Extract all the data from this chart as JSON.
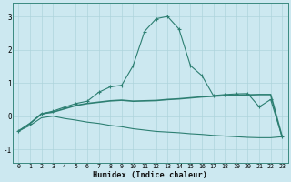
{
  "xlabel": "Humidex (Indice chaleur)",
  "x": [
    0,
    1,
    2,
    3,
    4,
    5,
    6,
    7,
    8,
    9,
    10,
    11,
    12,
    13,
    14,
    15,
    16,
    17,
    18,
    19,
    20,
    21,
    22,
    23
  ],
  "line1_y": [
    -0.45,
    -0.22,
    0.07,
    0.15,
    0.27,
    0.38,
    0.45,
    0.72,
    0.88,
    0.93,
    1.52,
    2.55,
    2.93,
    3.0,
    2.62,
    1.52,
    1.22,
    0.62,
    0.65,
    0.67,
    0.68,
    0.28,
    0.5,
    -0.62
  ],
  "line2_y": [
    -0.45,
    -0.22,
    0.07,
    0.12,
    0.22,
    0.32,
    0.38,
    0.42,
    0.46,
    0.48,
    0.45,
    0.46,
    0.47,
    0.5,
    0.52,
    0.55,
    0.58,
    0.6,
    0.62,
    0.63,
    0.64,
    0.65,
    0.65,
    -0.62
  ],
  "line3_y": [
    -0.45,
    -0.28,
    -0.05,
    0.0,
    -0.07,
    -0.12,
    -0.18,
    -0.22,
    -0.28,
    -0.32,
    -0.38,
    -0.42,
    -0.46,
    -0.48,
    -0.5,
    -0.53,
    -0.55,
    -0.58,
    -0.6,
    -0.62,
    -0.64,
    -0.65,
    -0.65,
    -0.62
  ],
  "line_color": "#2d7f72",
  "bg_color": "#cce8f0",
  "grid_color": "#aed4dc",
  "ylim": [
    -1.4,
    3.4
  ],
  "yticks": [
    -1,
    0,
    1,
    2,
    3
  ],
  "xlim": [
    -0.5,
    23.5
  ]
}
